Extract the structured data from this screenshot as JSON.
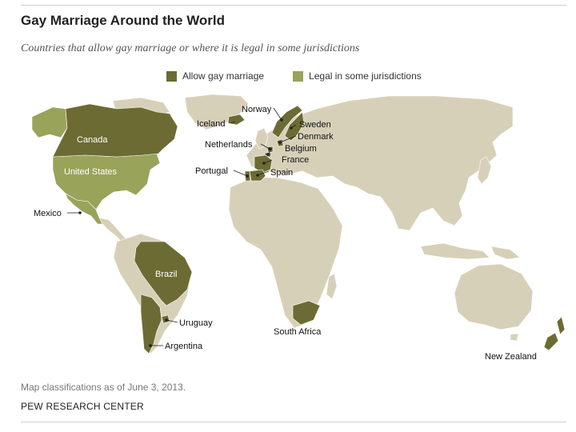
{
  "header": {
    "title": "Gay Marriage Around the World",
    "subtitle": "Countries that allow gay marriage or where it is legal in some jurisdictions"
  },
  "legend": {
    "allow": {
      "label": "Allow gay marriage",
      "color": "#6b6b33"
    },
    "some": {
      "label": "Legal in some jurisdictions",
      "color": "#9aa35a"
    }
  },
  "map": {
    "land_color": "#d7d0b9",
    "labels": {
      "canada": "Canada",
      "united_states": "United States",
      "mexico": "Mexico",
      "iceland": "Iceland",
      "norway": "Norway",
      "sweden": "Sweden",
      "denmark": "Denmark",
      "netherlands": "Netherlands",
      "belgium": "Belgium",
      "france": "France",
      "portugal": "Portugal",
      "spain": "Spain",
      "brazil": "Brazil",
      "uruguay": "Uruguay",
      "argentina": "Argentina",
      "south_africa": "South Africa",
      "new_zealand": "New Zealand"
    }
  },
  "footer": {
    "note": "Map classifications as of June 3, 2013.",
    "source": "PEW RESEARCH CENTER"
  }
}
